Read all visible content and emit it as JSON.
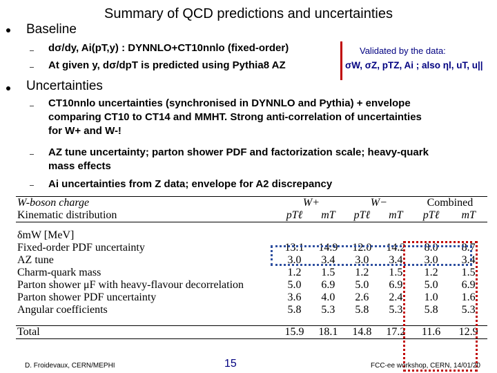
{
  "title": "Summary of QCD predictions and uncertainties",
  "baseline": {
    "heading": "Baseline",
    "items": [
      "dσ/dy,  Ai(pT,y) : DYNNLO+CT10nnlo (fixed-order)",
      "At given y, dσ/dpT is predicted using Pythia8 AZ"
    ],
    "validated_label": "Validated by the data:",
    "validated_list": "σW, σZ, pTZ, Ai ; also ηl, uT, u||"
  },
  "uncertainties": {
    "heading": "Uncertainties",
    "items": [
      "CT10nnlo uncertainties (synchronised in DYNNLO and Pythia) + envelope comparing CT10 to CT14 and MMHT. Strong anti-correlation of uncertainties for W+ and W-!",
      "AZ tune uncertainty; parton shower PDF and factorization scale; heavy-quark mass effects",
      "Ai uncertainties from Z data; envelope for A2 discrepancy"
    ]
  },
  "table": {
    "charge_label": "W-boson charge",
    "charges": [
      "W+",
      "W−",
      "Combined"
    ],
    "kin_label": "Kinematic distribution",
    "kinematics": [
      "pTℓ",
      "mT",
      "pTℓ",
      "mT",
      "pTℓ",
      "mT"
    ],
    "unit_label": "δmW [MeV]",
    "rows": [
      {
        "label": "Fixed-order PDF uncertainty",
        "values": [
          "13.1",
          "14.9",
          "12.0",
          "14.2",
          "8.0",
          "8.7"
        ]
      },
      {
        "label": "AZ tune",
        "values": [
          "3.0",
          "3.4",
          "3.0",
          "3.4",
          "3.0",
          "3.4"
        ]
      },
      {
        "label": "Charm-quark mass",
        "values": [
          "1.2",
          "1.5",
          "1.2",
          "1.5",
          "1.2",
          "1.5"
        ]
      },
      {
        "label": "Parton shower μF with heavy-flavour decorrelation",
        "values": [
          "5.0",
          "6.9",
          "5.0",
          "6.9",
          "5.0",
          "6.9"
        ]
      },
      {
        "label": "Parton shower PDF uncertainty",
        "values": [
          "3.6",
          "4.0",
          "2.6",
          "2.4",
          "1.0",
          "1.6"
        ]
      },
      {
        "label": "Angular coefficients",
        "values": [
          "5.8",
          "5.3",
          "5.8",
          "5.3",
          "5.8",
          "5.3"
        ]
      }
    ],
    "total_label": "Total",
    "total_values": [
      "15.9",
      "18.1",
      "14.8",
      "17.2",
      "11.6",
      "12.9"
    ]
  },
  "footer": {
    "author": "D. Froidevaux, CERN/MEPHI",
    "page": "15",
    "event": "FCC-ee workshop, CERN, 14/01/20"
  },
  "colors": {
    "blue_box": "#2e4fa0",
    "red_box": "#c00000",
    "accent": "#000080"
  }
}
